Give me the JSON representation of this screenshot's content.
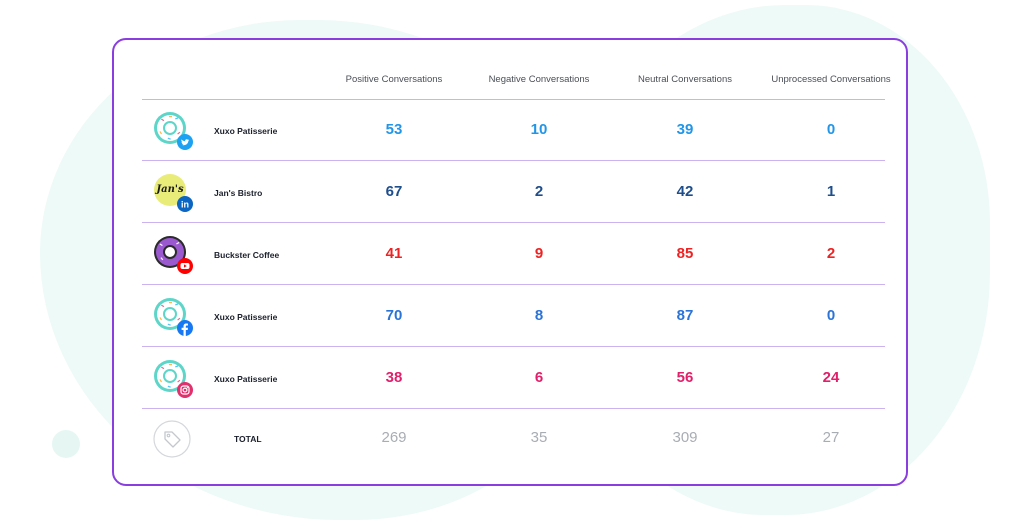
{
  "headers": [
    "Positive Conversations",
    "Negative Conversations",
    "Neutral Conversations",
    "Unprocessed Conversations"
  ],
  "rows": [
    {
      "name": "Xuxo Patisserie",
      "network": "twitter",
      "avatar": "donut-icon",
      "badge_color": "#1da1f2",
      "color": "#2196e8",
      "values": [
        "53",
        "10",
        "39",
        "0"
      ]
    },
    {
      "name": "Jan's Bistro",
      "network": "linkedin",
      "avatar": "jans-logo",
      "logo_text": "Jan's",
      "badge_color": "#0a66c2",
      "color": "#1e4e8c",
      "values": [
        "67",
        "2",
        "42",
        "1"
      ]
    },
    {
      "name": "Buckster Coffee",
      "network": "youtube",
      "avatar": "chocolate-donut-icon",
      "badge_color": "#ff0000",
      "color": "#ee2222",
      "values": [
        "41",
        "9",
        "85",
        "2"
      ]
    },
    {
      "name": "Xuxo Patisserie",
      "network": "facebook",
      "avatar": "donut-icon",
      "badge_color": "#1877f2",
      "color": "#2a73d8",
      "values": [
        "70",
        "8",
        "87",
        "0"
      ]
    },
    {
      "name": "Xuxo Patisserie",
      "network": "instagram",
      "avatar": "donut-icon",
      "badge_color": "#e1306c",
      "color": "#e0206a",
      "values": [
        "38",
        "6",
        "56",
        "24"
      ]
    }
  ],
  "total": {
    "label": "TOTAL",
    "icon": "tag-icon",
    "color": "#a8adb4",
    "values": [
      "269",
      "35",
      "309",
      "27"
    ]
  }
}
